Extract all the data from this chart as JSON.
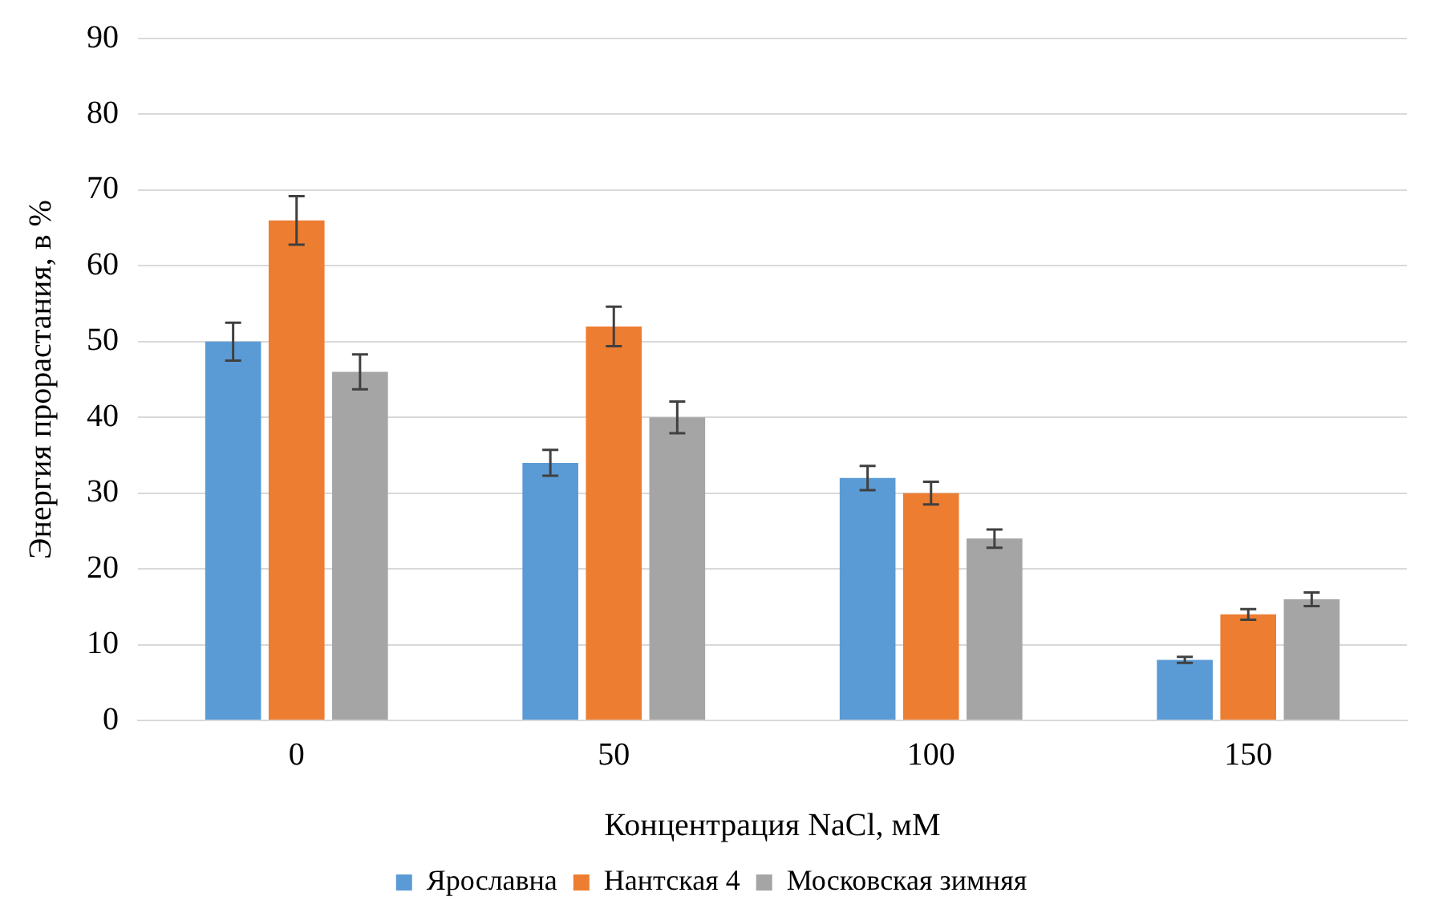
{
  "chart_data": {
    "type": "bar",
    "xlabel": "Концентрация NaCl, мМ",
    "ylabel": "Энергия прорастания, в %",
    "categories": [
      "0",
      "50",
      "100",
      "150"
    ],
    "series": [
      {
        "name": "Ярославна",
        "color": "#5b9bd5",
        "values": [
          50,
          34,
          32,
          8
        ],
        "errors": [
          2.5,
          1.7,
          1.6,
          0.4
        ]
      },
      {
        "name": "Нантская 4",
        "color": "#ed7d31",
        "values": [
          66,
          52,
          30,
          14
        ],
        "errors": [
          3.2,
          2.6,
          1.5,
          0.7
        ]
      },
      {
        "name": "Московская зимняя",
        "color": "#a5a5a5",
        "values": [
          46,
          40,
          24,
          16
        ],
        "errors": [
          2.3,
          2.1,
          1.2,
          0.9
        ]
      }
    ],
    "ylim": [
      0,
      90
    ],
    "yticks": [
      0,
      10,
      20,
      30,
      40,
      50,
      60,
      70,
      80,
      90
    ],
    "grid": "y",
    "legend": "bottom"
  }
}
